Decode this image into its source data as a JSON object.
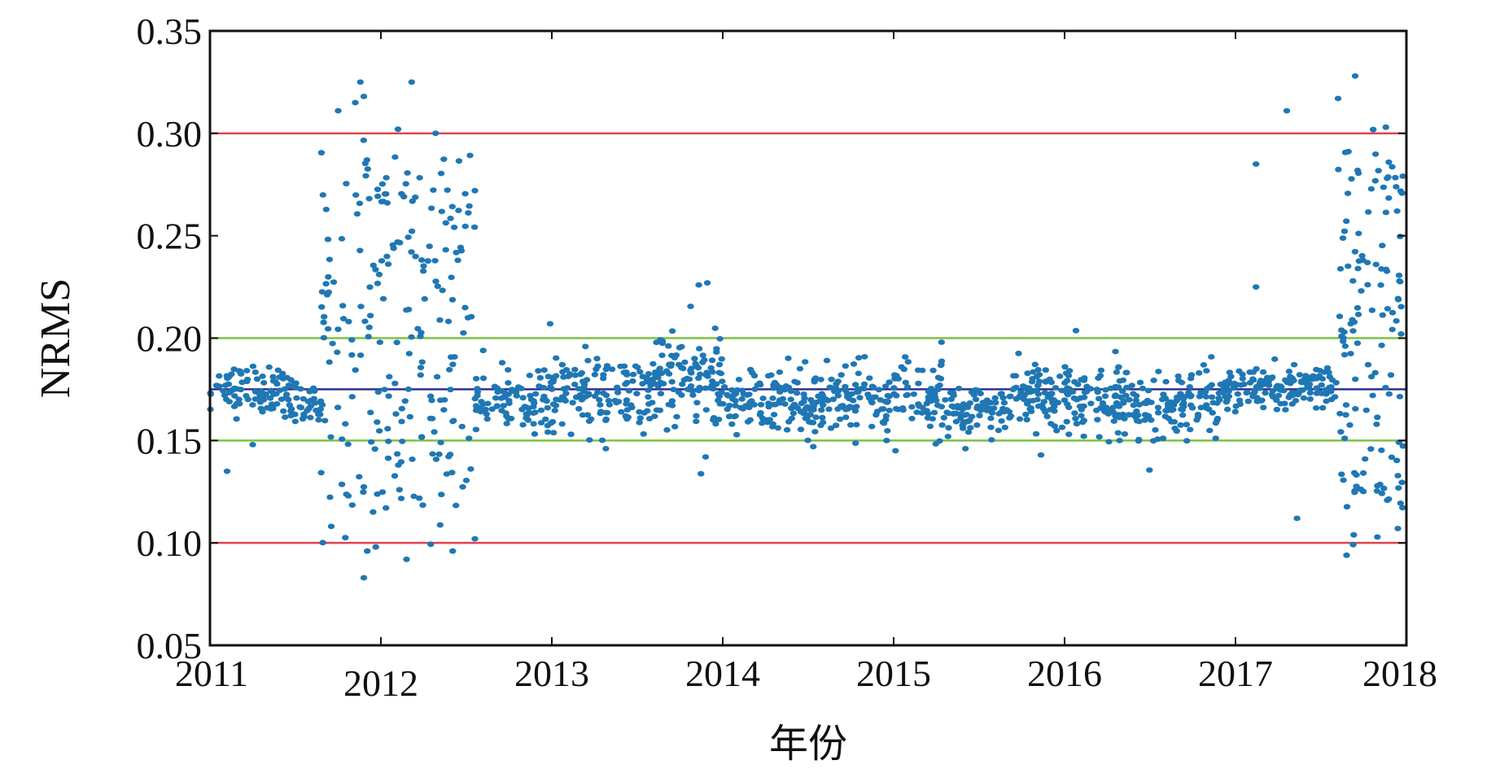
{
  "chart_data": {
    "type": "scatter",
    "title": "",
    "xlabel": "年份",
    "ylabel": "NRMS",
    "xlim": [
      2011,
      2018
    ],
    "ylim": [
      0.05,
      0.35
    ],
    "x_ticks": [
      "2011",
      "2012",
      "2013",
      "2014",
      "2015",
      "2016",
      "2017",
      "2018"
    ],
    "y_ticks": [
      "0.05",
      "0.10",
      "0.15",
      "0.20",
      "0.25",
      "0.30",
      "0.35"
    ],
    "grid": false,
    "legend": "none",
    "point_color": "#1f77b4",
    "reference_lines": [
      {
        "y": 0.3,
        "color": "#e0424f"
      },
      {
        "y": 0.2,
        "color": "#7cc242"
      },
      {
        "y": 0.175,
        "color": "#2d2f92"
      },
      {
        "y": 0.15,
        "color": "#7cc242"
      },
      {
        "y": 0.1,
        "color": "#e0424f"
      }
    ],
    "segments": [
      {
        "x0": 2011.0,
        "x1": 2011.45,
        "center": 0.175,
        "spread": 0.006,
        "n": 85
      },
      {
        "x0": 2011.45,
        "x1": 2011.65,
        "center": 0.168,
        "spread": 0.006,
        "n": 40
      },
      {
        "x0": 2011.65,
        "x1": 2012.55,
        "center": 0.2,
        "spread": 0.055,
        "n": 220
      },
      {
        "x0": 2012.55,
        "x1": 2013.0,
        "center": 0.17,
        "spread": 0.008,
        "n": 90
      },
      {
        "x0": 2013.0,
        "x1": 2013.6,
        "center": 0.173,
        "spread": 0.009,
        "n": 130
      },
      {
        "x0": 2013.6,
        "x1": 2014.0,
        "center": 0.182,
        "spread": 0.012,
        "n": 110
      },
      {
        "x0": 2014.0,
        "x1": 2014.6,
        "center": 0.168,
        "spread": 0.008,
        "n": 140
      },
      {
        "x0": 2014.6,
        "x1": 2015.3,
        "center": 0.172,
        "spread": 0.008,
        "n": 150
      },
      {
        "x0": 2015.3,
        "x1": 2015.7,
        "center": 0.165,
        "spread": 0.006,
        "n": 90
      },
      {
        "x0": 2015.7,
        "x1": 2016.3,
        "center": 0.172,
        "spread": 0.009,
        "n": 150
      },
      {
        "x0": 2016.3,
        "x1": 2016.9,
        "center": 0.167,
        "spread": 0.01,
        "n": 140
      },
      {
        "x0": 2016.9,
        "x1": 2017.6,
        "center": 0.176,
        "spread": 0.005,
        "n": 160
      },
      {
        "x0": 2017.6,
        "x1": 2017.98,
        "center": 0.2,
        "spread": 0.06,
        "n": 130
      }
    ],
    "notable_points": [
      {
        "x": 2011.1,
        "y": 0.135
      },
      {
        "x": 2011.25,
        "y": 0.148
      },
      {
        "x": 2011.75,
        "y": 0.311
      },
      {
        "x": 2011.85,
        "y": 0.315
      },
      {
        "x": 2011.88,
        "y": 0.325
      },
      {
        "x": 2011.9,
        "y": 0.318
      },
      {
        "x": 2011.92,
        "y": 0.096
      },
      {
        "x": 2011.9,
        "y": 0.083
      },
      {
        "x": 2011.97,
        "y": 0.098
      },
      {
        "x": 2012.18,
        "y": 0.325
      },
      {
        "x": 2012.15,
        "y": 0.092
      },
      {
        "x": 2012.1,
        "y": 0.302
      },
      {
        "x": 2012.32,
        "y": 0.3
      },
      {
        "x": 2012.42,
        "y": 0.096
      },
      {
        "x": 2012.55,
        "y": 0.102
      },
      {
        "x": 2012.55,
        "y": 0.272
      },
      {
        "x": 2012.99,
        "y": 0.207
      },
      {
        "x": 2013.86,
        "y": 0.226
      },
      {
        "x": 2013.91,
        "y": 0.227
      },
      {
        "x": 2013.9,
        "y": 0.142
      },
      {
        "x": 2014.53,
        "y": 0.147
      },
      {
        "x": 2015.28,
        "y": 0.198
      },
      {
        "x": 2015.42,
        "y": 0.146
      },
      {
        "x": 2017.12,
        "y": 0.285
      },
      {
        "x": 2017.12,
        "y": 0.225
      },
      {
        "x": 2017.3,
        "y": 0.311
      },
      {
        "x": 2017.36,
        "y": 0.112
      },
      {
        "x": 2017.65,
        "y": 0.094
      },
      {
        "x": 2017.7,
        "y": 0.328
      },
      {
        "x": 2017.88,
        "y": 0.303
      },
      {
        "x": 2017.95,
        "y": 0.107
      },
      {
        "x": 2017.6,
        "y": 0.317
      }
    ]
  }
}
